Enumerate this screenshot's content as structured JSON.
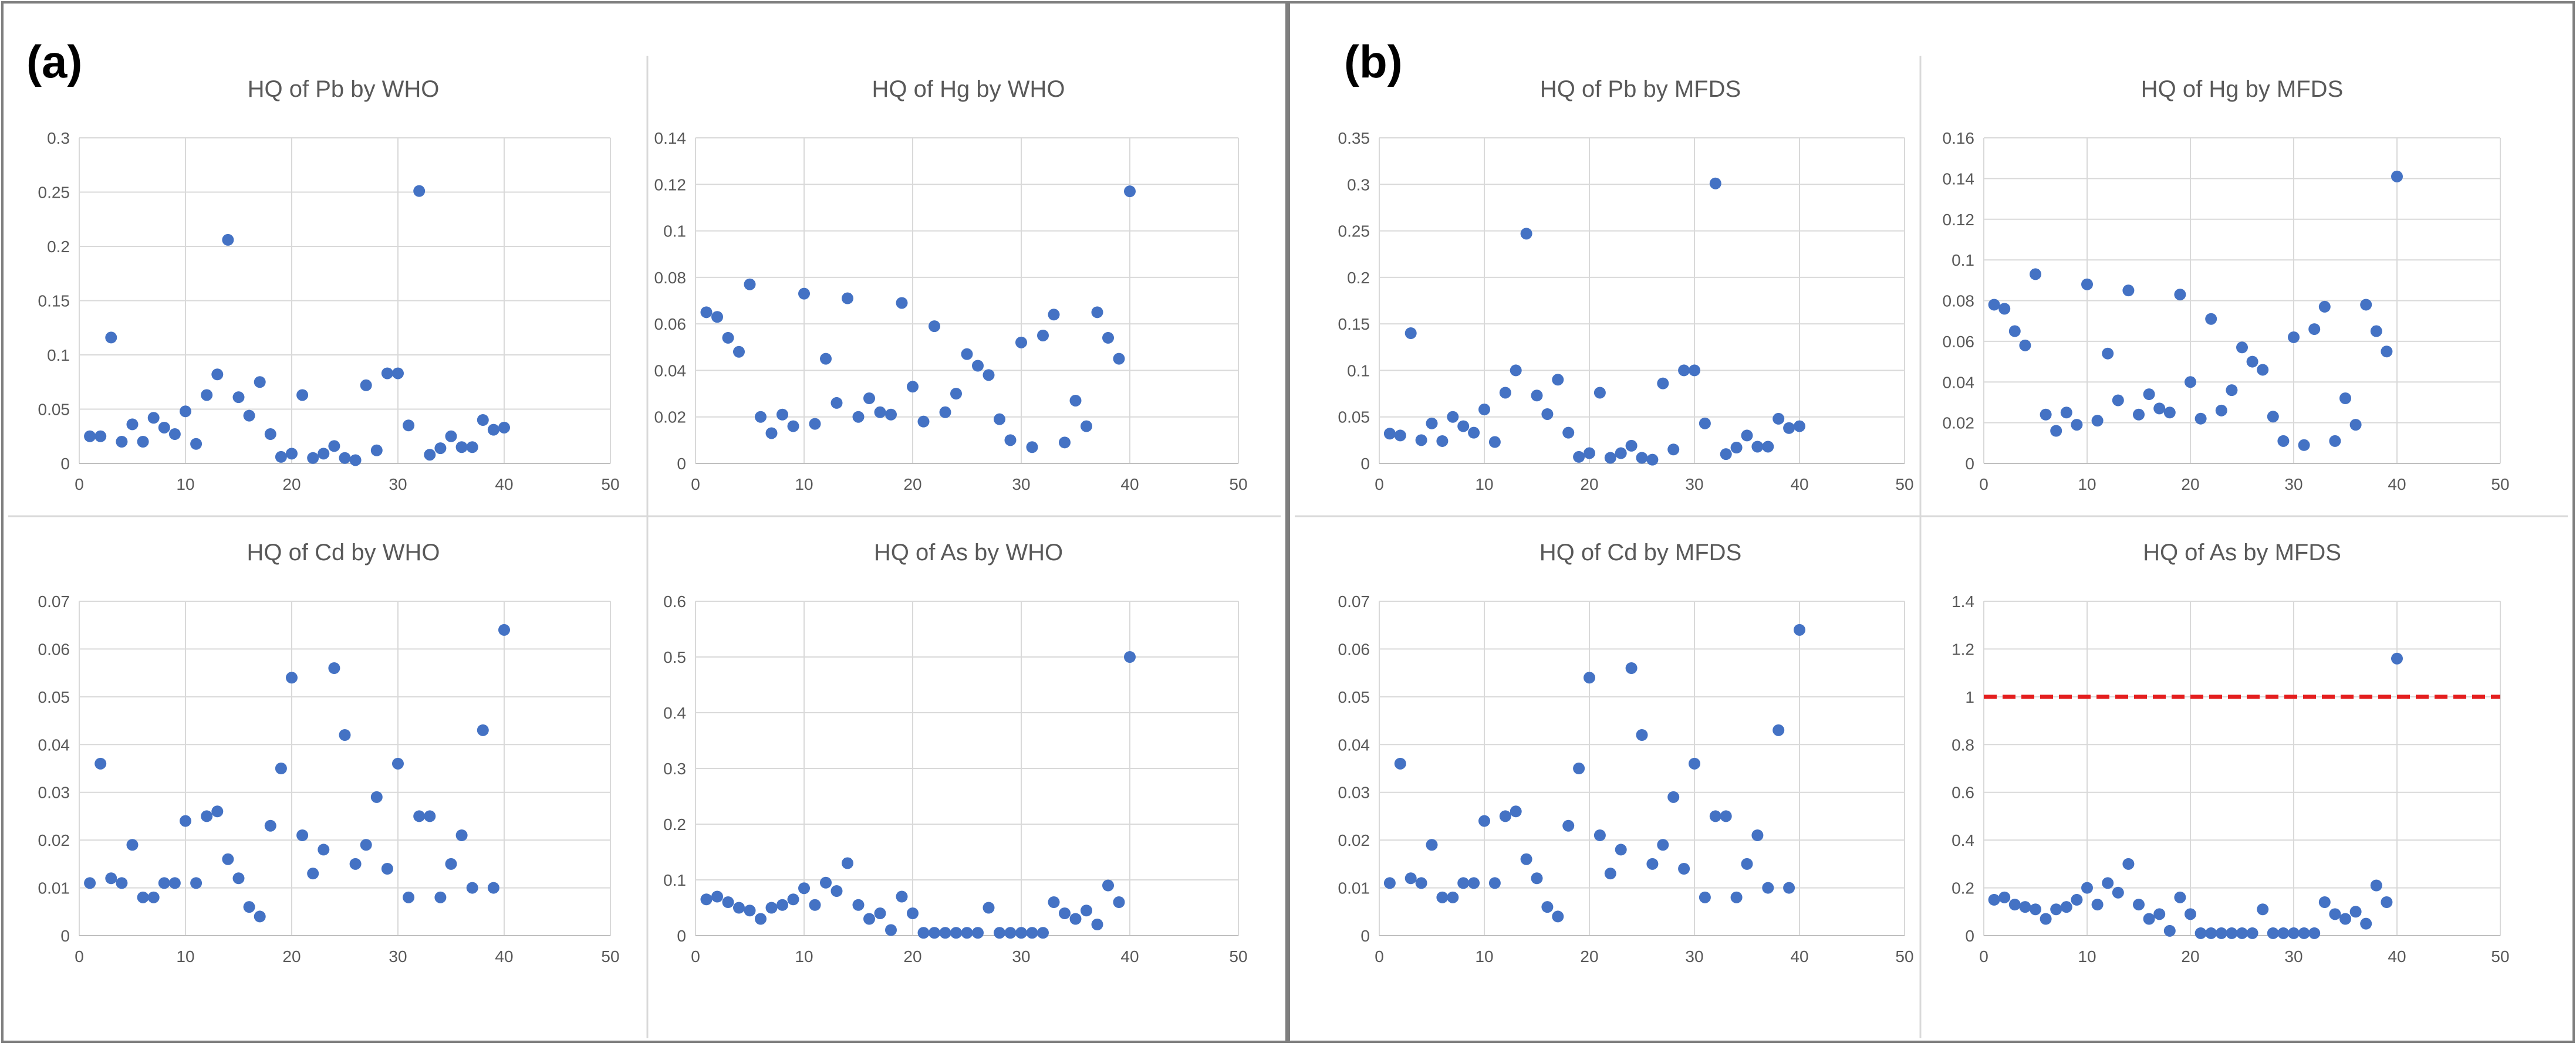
{
  "panel_labels": [
    "(a)",
    "(b)"
  ],
  "colors": {
    "marker": "#4472C4",
    "threshold": "#E41E1E",
    "grid": "#D9D9D9",
    "text": "#595959",
    "border": "#7F7F7F"
  },
  "chart_data": [
    {
      "type": "scatter",
      "title": "HQ of Pb by WHO",
      "xlabel": "",
      "ylabel": "",
      "xlim": [
        0,
        50
      ],
      "xticks": [
        0,
        10,
        20,
        30,
        40,
        50
      ],
      "ylim": [
        0,
        0.3
      ],
      "yticks": [
        "0",
        "0.05",
        "0.1",
        "0.15",
        "0.2",
        "0.25",
        "0.3"
      ],
      "x": [
        1,
        2,
        3,
        4,
        5,
        6,
        7,
        8,
        9,
        10,
        11,
        12,
        13,
        14,
        15,
        16,
        17,
        18,
        19,
        20,
        21,
        22,
        23,
        24,
        25,
        26,
        27,
        28,
        29,
        30,
        31,
        32,
        33,
        34,
        35,
        36,
        37,
        38,
        39,
        40
      ],
      "y": [
        0.025,
        0.025,
        0.116,
        0.02,
        0.036,
        0.02,
        0.042,
        0.033,
        0.027,
        0.048,
        0.018,
        0.063,
        0.082,
        0.206,
        0.061,
        0.044,
        0.075,
        0.027,
        0.006,
        0.009,
        0.063,
        0.005,
        0.009,
        0.016,
        0.005,
        0.003,
        0.072,
        0.012,
        0.083,
        0.083,
        0.035,
        0.251,
        0.008,
        0.014,
        0.025,
        0.015,
        0.015,
        0.04,
        0.031,
        0.033
      ]
    },
    {
      "type": "scatter",
      "title": "HQ of Hg by WHO",
      "xlabel": "",
      "ylabel": "",
      "xlim": [
        0,
        50
      ],
      "xticks": [
        0,
        10,
        20,
        30,
        40,
        50
      ],
      "ylim": [
        0,
        0.14
      ],
      "yticks": [
        "0",
        "0.02",
        "0.04",
        "0.06",
        "0.08",
        "0.1",
        "0.12",
        "0.14"
      ],
      "x": [
        1,
        2,
        3,
        4,
        5,
        6,
        7,
        8,
        9,
        10,
        11,
        12,
        13,
        14,
        15,
        16,
        17,
        18,
        19,
        20,
        21,
        22,
        23,
        24,
        25,
        26,
        27,
        28,
        29,
        30,
        31,
        32,
        33,
        34,
        35,
        36,
        37,
        38,
        39,
        40
      ],
      "y": [
        0.065,
        0.063,
        0.054,
        0.048,
        0.077,
        0.02,
        0.013,
        0.021,
        0.016,
        0.073,
        0.017,
        0.045,
        0.026,
        0.071,
        0.02,
        0.028,
        0.022,
        0.021,
        0.069,
        0.033,
        0.018,
        0.059,
        0.022,
        0.03,
        0.047,
        0.042,
        0.038,
        0.019,
        0.01,
        0.052,
        0.007,
        0.055,
        0.064,
        0.009,
        0.027,
        0.016,
        0.065,
        0.054,
        0.045,
        0.117
      ]
    },
    {
      "type": "scatter",
      "title": "HQ of Cd by WHO",
      "xlabel": "",
      "ylabel": "",
      "xlim": [
        0,
        50
      ],
      "xticks": [
        0,
        10,
        20,
        30,
        40,
        50
      ],
      "ylim": [
        0,
        0.07
      ],
      "yticks": [
        "0",
        "0.01",
        "0.02",
        "0.03",
        "0.04",
        "0.05",
        "0.06",
        "0.07"
      ],
      "x": [
        1,
        2,
        3,
        4,
        5,
        6,
        7,
        8,
        9,
        10,
        11,
        12,
        13,
        14,
        15,
        16,
        17,
        18,
        19,
        20,
        21,
        22,
        23,
        24,
        25,
        26,
        27,
        28,
        29,
        30,
        31,
        32,
        33,
        34,
        35,
        36,
        37,
        38,
        39,
        40
      ],
      "y": [
        0.011,
        0.036,
        0.012,
        0.011,
        0.019,
        0.008,
        0.008,
        0.011,
        0.011,
        0.024,
        0.011,
        0.025,
        0.026,
        0.016,
        0.012,
        0.006,
        0.004,
        0.023,
        0.035,
        0.054,
        0.021,
        0.013,
        0.018,
        0.056,
        0.042,
        0.015,
        0.019,
        0.029,
        0.014,
        0.036,
        0.008,
        0.025,
        0.025,
        0.008,
        0.015,
        0.021,
        0.01,
        0.043,
        0.01,
        0.064
      ]
    },
    {
      "type": "scatter",
      "title": "HQ of As by WHO",
      "xlabel": "",
      "ylabel": "",
      "xlim": [
        0,
        50
      ],
      "xticks": [
        0,
        10,
        20,
        30,
        40,
        50
      ],
      "ylim": [
        0,
        0.6
      ],
      "yticks": [
        "0",
        "0.1",
        "0.2",
        "0.3",
        "0.4",
        "0.5",
        "0.6"
      ],
      "x": [
        1,
        2,
        3,
        4,
        5,
        6,
        7,
        8,
        9,
        10,
        11,
        12,
        13,
        14,
        15,
        16,
        17,
        18,
        19,
        20,
        21,
        22,
        23,
        24,
        25,
        26,
        27,
        28,
        29,
        30,
        31,
        32,
        33,
        34,
        35,
        36,
        37,
        38,
        39,
        40
      ],
      "y": [
        0.065,
        0.07,
        0.06,
        0.05,
        0.045,
        0.03,
        0.05,
        0.055,
        0.065,
        0.085,
        0.055,
        0.095,
        0.08,
        0.13,
        0.055,
        0.03,
        0.04,
        0.01,
        0.07,
        0.04,
        0.005,
        0.005,
        0.005,
        0.005,
        0.005,
        0.005,
        0.05,
        0.005,
        0.005,
        0.005,
        0.005,
        0.005,
        0.06,
        0.04,
        0.03,
        0.045,
        0.02,
        0.09,
        0.06,
        0.5
      ]
    },
    {
      "type": "scatter",
      "title": "HQ of Pb by MFDS",
      "xlabel": "",
      "ylabel": "",
      "xlim": [
        0,
        50
      ],
      "xticks": [
        0,
        10,
        20,
        30,
        40,
        50
      ],
      "ylim": [
        0,
        0.35
      ],
      "yticks": [
        "0",
        "0.05",
        "0.1",
        "0.15",
        "0.2",
        "0.25",
        "0.3",
        "0.35"
      ],
      "x": [
        1,
        2,
        3,
        4,
        5,
        6,
        7,
        8,
        9,
        10,
        11,
        12,
        13,
        14,
        15,
        16,
        17,
        18,
        19,
        20,
        21,
        22,
        23,
        24,
        25,
        26,
        27,
        28,
        29,
        30,
        31,
        32,
        33,
        34,
        35,
        36,
        37,
        38,
        39,
        40
      ],
      "y": [
        0.032,
        0.03,
        0.14,
        0.025,
        0.043,
        0.024,
        0.05,
        0.04,
        0.033,
        0.058,
        0.023,
        0.076,
        0.1,
        0.247,
        0.073,
        0.053,
        0.09,
        0.033,
        0.007,
        0.011,
        0.076,
        0.006,
        0.011,
        0.019,
        0.006,
        0.004,
        0.086,
        0.015,
        0.1,
        0.1,
        0.043,
        0.301,
        0.01,
        0.017,
        0.03,
        0.018,
        0.018,
        0.048,
        0.038,
        0.04
      ]
    },
    {
      "type": "scatter",
      "title": "HQ of Hg by MFDS",
      "xlabel": "",
      "ylabel": "",
      "xlim": [
        0,
        50
      ],
      "xticks": [
        0,
        10,
        20,
        30,
        40,
        50
      ],
      "ylim": [
        0,
        0.16
      ],
      "yticks": [
        "0",
        "0.02",
        "0.04",
        "0.06",
        "0.08",
        "0.1",
        "0.12",
        "0.14",
        "0.16"
      ],
      "x": [
        1,
        2,
        3,
        4,
        5,
        6,
        7,
        8,
        9,
        10,
        11,
        12,
        13,
        14,
        15,
        16,
        17,
        18,
        19,
        20,
        21,
        22,
        23,
        24,
        25,
        26,
        27,
        28,
        29,
        30,
        31,
        32,
        33,
        34,
        35,
        36,
        37,
        38,
        39,
        40
      ],
      "y": [
        0.078,
        0.076,
        0.065,
        0.058,
        0.093,
        0.024,
        0.016,
        0.025,
        0.019,
        0.088,
        0.021,
        0.054,
        0.031,
        0.085,
        0.024,
        0.034,
        0.027,
        0.025,
        0.083,
        0.04,
        0.022,
        0.071,
        0.026,
        0.036,
        0.057,
        0.05,
        0.046,
        0.023,
        0.011,
        0.062,
        0.009,
        0.066,
        0.077,
        0.011,
        0.032,
        0.019,
        0.078,
        0.065,
        0.055,
        0.141
      ]
    },
    {
      "type": "scatter",
      "title": "HQ of Cd by MFDS",
      "xlabel": "",
      "ylabel": "",
      "xlim": [
        0,
        50
      ],
      "xticks": [
        0,
        10,
        20,
        30,
        40,
        50
      ],
      "ylim": [
        0,
        0.07
      ],
      "yticks": [
        "0",
        "0.01",
        "0.02",
        "0.03",
        "0.04",
        "0.05",
        "0.06",
        "0.07"
      ],
      "x": [
        1,
        2,
        3,
        4,
        5,
        6,
        7,
        8,
        9,
        10,
        11,
        12,
        13,
        14,
        15,
        16,
        17,
        18,
        19,
        20,
        21,
        22,
        23,
        24,
        25,
        26,
        27,
        28,
        29,
        30,
        31,
        32,
        33,
        34,
        35,
        36,
        37,
        38,
        39,
        40
      ],
      "y": [
        0.011,
        0.036,
        0.012,
        0.011,
        0.019,
        0.008,
        0.008,
        0.011,
        0.011,
        0.024,
        0.011,
        0.025,
        0.026,
        0.016,
        0.012,
        0.006,
        0.004,
        0.023,
        0.035,
        0.054,
        0.021,
        0.013,
        0.018,
        0.056,
        0.042,
        0.015,
        0.019,
        0.029,
        0.014,
        0.036,
        0.008,
        0.025,
        0.025,
        0.008,
        0.015,
        0.021,
        0.01,
        0.043,
        0.01,
        0.064
      ]
    },
    {
      "type": "scatter",
      "title": "HQ of As by MFDS",
      "xlabel": "",
      "ylabel": "",
      "xlim": [
        0,
        50
      ],
      "xticks": [
        0,
        10,
        20,
        30,
        40,
        50
      ],
      "ylim": [
        0,
        1.4
      ],
      "yticks": [
        "0",
        "0.2",
        "0.4",
        "0.6",
        "0.8",
        "1",
        "1.2",
        "1.4"
      ],
      "threshold": 1,
      "x": [
        1,
        2,
        3,
        4,
        5,
        6,
        7,
        8,
        9,
        10,
        11,
        12,
        13,
        14,
        15,
        16,
        17,
        18,
        19,
        20,
        21,
        22,
        23,
        24,
        25,
        26,
        27,
        28,
        29,
        30,
        31,
        32,
        33,
        34,
        35,
        36,
        37,
        38,
        39,
        40
      ],
      "y": [
        0.15,
        0.16,
        0.13,
        0.12,
        0.11,
        0.07,
        0.11,
        0.12,
        0.15,
        0.2,
        0.13,
        0.22,
        0.18,
        0.3,
        0.13,
        0.07,
        0.09,
        0.02,
        0.16,
        0.09,
        0.01,
        0.01,
        0.01,
        0.01,
        0.01,
        0.01,
        0.11,
        0.01,
        0.01,
        0.01,
        0.01,
        0.01,
        0.14,
        0.09,
        0.07,
        0.1,
        0.05,
        0.21,
        0.14,
        1.16
      ]
    }
  ]
}
